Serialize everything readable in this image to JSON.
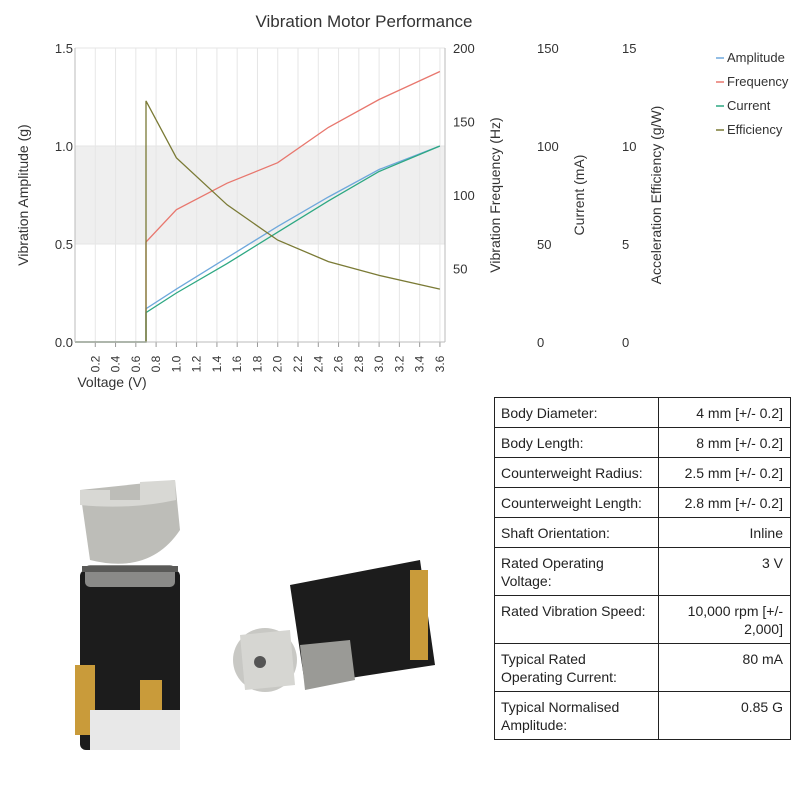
{
  "chart_data": {
    "type": "line",
    "title": "Vibration Motor Performance",
    "xlabel": "Voltage (V)",
    "x_ticks": [
      "0.2",
      "0.4",
      "0.6",
      "0.8",
      "1.0",
      "1.2",
      "1.4",
      "1.6",
      "1.8",
      "2.0",
      "2.2",
      "2.4",
      "2.6",
      "2.8",
      "3.0",
      "3.2",
      "3.4",
      "3.6"
    ],
    "xlim": [
      0,
      3.65
    ],
    "grid": true,
    "shaded_band": [
      0.5,
      1.0
    ],
    "legend_position": "top-right",
    "axes": [
      {
        "id": "amp",
        "label": "Vibration Amplitude (g)",
        "ylim": [
          0,
          1.5
        ],
        "ticks": [
          "0.0",
          "0.5",
          "1.0",
          "1.5"
        ]
      },
      {
        "id": "freq",
        "label": "Vibration Frequency (Hz)",
        "ylim": [
          0,
          200
        ],
        "ticks": [
          "50",
          "100",
          "150",
          "200"
        ]
      },
      {
        "id": "cur",
        "label": "Current (mA)",
        "ylim": [
          0,
          150
        ],
        "ticks": [
          "0",
          "50",
          "100",
          "150"
        ]
      },
      {
        "id": "eff",
        "label": "Acceleration Efficiency (g/W)",
        "ylim": [
          0,
          15
        ],
        "ticks": [
          "0",
          "5",
          "10",
          "15"
        ]
      }
    ],
    "series": [
      {
        "name": "Amplitude",
        "axis": "amp",
        "color": "#6fa8dc",
        "x": [
          0,
          0.7,
          0.7,
          1.0,
          1.5,
          2.0,
          2.5,
          3.0,
          3.6
        ],
        "y": [
          0,
          0,
          0.17,
          0.27,
          0.43,
          0.59,
          0.74,
          0.88,
          1.0
        ]
      },
      {
        "name": "Frequency",
        "axis": "freq",
        "color": "#e8776e",
        "x": [
          0,
          0.7,
          0.7,
          1.0,
          1.5,
          2.0,
          2.5,
          3.0,
          3.6
        ],
        "y": [
          0,
          0,
          68,
          90,
          108,
          122,
          146,
          165,
          184
        ]
      },
      {
        "name": "Current",
        "axis": "cur",
        "color": "#2ea883",
        "x": [
          0,
          0.7,
          0.7,
          1.0,
          1.5,
          2.0,
          2.5,
          3.0,
          3.6
        ],
        "y": [
          0,
          0,
          15,
          25,
          40,
          56,
          72,
          87,
          100
        ]
      },
      {
        "name": "Efficiency",
        "axis": "eff",
        "color": "#7a7a35",
        "x": [
          0,
          0.7,
          0.7,
          1.0,
          1.5,
          2.0,
          2.5,
          3.0,
          3.6
        ],
        "y": [
          0,
          0,
          12.3,
          9.4,
          7.0,
          5.2,
          4.1,
          3.4,
          2.7
        ]
      }
    ]
  },
  "specs": {
    "rows": [
      {
        "label": "Body Diameter:",
        "value": "4 mm [+/- 0.2]"
      },
      {
        "label": "Body Length:",
        "value": "8 mm [+/- 0.2]"
      },
      {
        "label": "Counterweight Radius:",
        "value": "2.5 mm [+/- 0.2]"
      },
      {
        "label": "Counterweight Length:",
        "value": "2.8 mm [+/- 0.2]"
      },
      {
        "label": "Shaft Orientation:",
        "value": "Inline"
      },
      {
        "label": "Rated Operating Voltage:",
        "value": "3 V"
      },
      {
        "label": "Rated Vibration Speed:",
        "value": "10,000 rpm [+/- 2,000]"
      },
      {
        "label": "Typical Rated Operating Current:",
        "value": "80 mA"
      },
      {
        "label": "Typical Normalised Amplitude:",
        "value": "0.85 G"
      }
    ]
  },
  "photo": {
    "subject": "vibration-motor-photo"
  }
}
